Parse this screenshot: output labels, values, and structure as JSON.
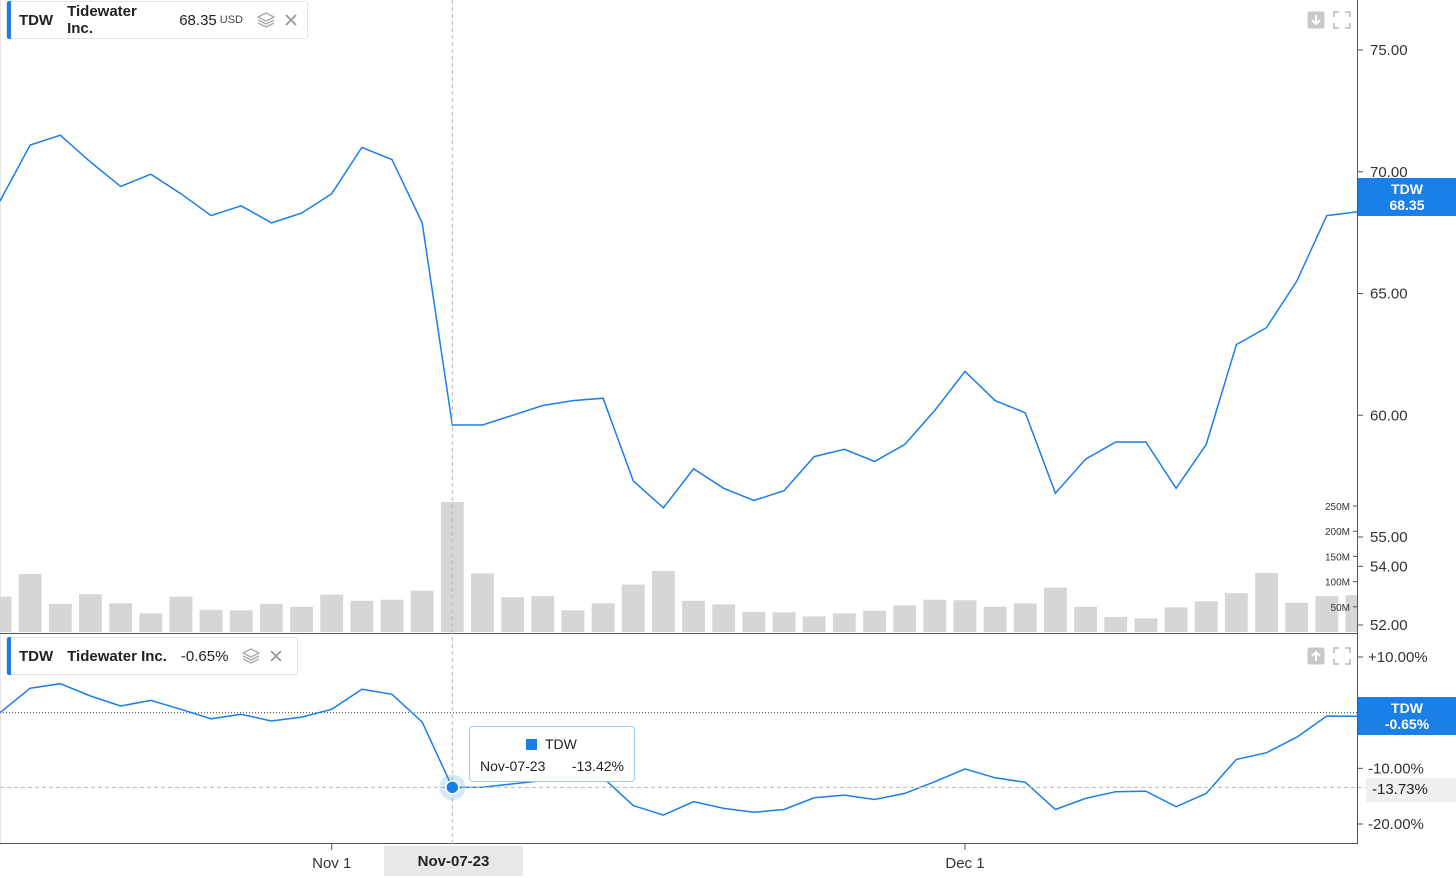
{
  "colors": {
    "line": "#1a7fe6",
    "volume": "#d6d6d6",
    "tag": "#1a7fe6",
    "grid_dash": "#b0b0b0"
  },
  "upper_legend": {
    "symbol": "TDW",
    "name": "Tidewater Inc.",
    "price": "68.35",
    "unit": "USD",
    "icons": [
      "layers-icon",
      "close-icon"
    ]
  },
  "lower_legend": {
    "symbol": "TDW",
    "name": "Tidewater Inc.",
    "change": "-0.65%",
    "icons": [
      "layers-icon",
      "close-icon"
    ]
  },
  "upper_corner_icons": [
    "download-icon",
    "fullscreen-icon"
  ],
  "lower_corner_icons": [
    "upload-icon",
    "fullscreen-icon"
  ],
  "price_tag": {
    "symbol": "TDW",
    "value": "68.35"
  },
  "pct_tag": {
    "symbol": "TDW",
    "value": "-0.65%"
  },
  "cursor_tag": "-13.73%",
  "tooltip": {
    "symbol": "TDW",
    "date": "Nov-07-23",
    "value": "-13.42%"
  },
  "x_hover_label": "Nov-07-23",
  "chart_data": [
    {
      "type": "line",
      "series": [
        {
          "name": "TDW",
          "values": [
            68.8,
            71.1,
            71.5,
            70.4,
            69.4,
            69.9,
            69.1,
            68.2,
            68.6,
            67.9,
            68.3,
            69.1,
            71.0,
            70.5,
            67.9,
            59.6,
            59.6,
            60.0,
            60.4,
            60.6,
            60.7,
            57.3,
            56.2,
            57.8,
            57.0,
            56.5,
            56.9,
            58.3,
            58.6,
            58.1,
            58.8,
            60.2,
            61.8,
            60.6,
            60.1,
            56.8,
            58.2,
            58.9,
            58.9,
            57.0,
            58.8,
            62.9,
            63.6,
            65.5,
            68.2,
            68.35
          ]
        }
      ],
      "y_ticks": [
        "75.00",
        "70.00",
        "65.00",
        "60.00",
        "55.00",
        "54.00",
        "52.00"
      ],
      "ylim": [
        52,
        76
      ],
      "x_tick_labels": [
        "Nov 1",
        "Dec 1"
      ],
      "grid": false
    },
    {
      "type": "bar",
      "series": [
        {
          "name": "Volume",
          "values": [
            70,
            115,
            56,
            75,
            57,
            37,
            70,
            44,
            43,
            56,
            50,
            74,
            62,
            64,
            82,
            258,
            116,
            69,
            71,
            43,
            57,
            94,
            121,
            62,
            55,
            40,
            39,
            31,
            37,
            42,
            53,
            64,
            63,
            50,
            57,
            88,
            50,
            30,
            27,
            49,
            61,
            77,
            117,
            58,
            71,
            73
          ]
        }
      ],
      "y_ticks": [
        "250M",
        "200M",
        "150M",
        "100M",
        "50M"
      ],
      "ylim": [
        0,
        250
      ]
    },
    {
      "type": "line",
      "series": [
        {
          "name": "TDW",
          "values": [
            0.0,
            4.4,
            5.2,
            3.0,
            1.2,
            2.2,
            0.6,
            -1.1,
            -0.3,
            -1.5,
            -0.8,
            0.6,
            4.2,
            3.3,
            -1.7,
            -13.42,
            -13.4,
            -12.8,
            -12.2,
            -11.9,
            -11.7,
            -16.7,
            -18.4,
            -16.0,
            -17.2,
            -17.9,
            -17.4,
            -15.3,
            -14.8,
            -15.6,
            -14.5,
            -12.4,
            -10.1,
            -11.7,
            -12.5,
            -17.4,
            -15.4,
            -14.2,
            -14.1,
            -16.9,
            -14.5,
            -8.4,
            -7.2,
            -4.4,
            -0.6,
            -0.65
          ]
        }
      ],
      "y_ticks": [
        "+10.00%",
        "-10.00%",
        "-20.00%"
      ],
      "ylim": [
        -21.5,
        12
      ]
    }
  ]
}
